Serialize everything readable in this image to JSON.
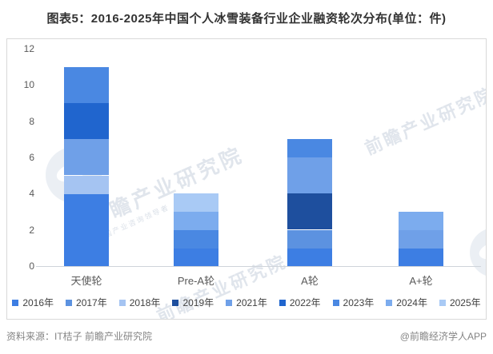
{
  "title": "图表5：2016-2025年中国个人冰雪装备行业企业融资轮次分布(单位：件)",
  "source": {
    "left": "资料来源：IT桔子 前瞻产业研究院",
    "right": "@前瞻经济学人APP"
  },
  "watermark": {
    "main_text": "前瞻产业研究院",
    "sub_text": "中国产业咨询领导者"
  },
  "chart_data": {
    "type": "bar",
    "stacked": true,
    "title": "图表5：2016-2025年中国个人冰雪装备行业企业融资轮次分布(单位：件)",
    "unit_label": "件",
    "categories": [
      "天使轮",
      "Pre-A轮",
      "A轮",
      "A+轮"
    ],
    "series": [
      {
        "name": "2016年",
        "color": "#3d7ee3",
        "values": [
          4,
          1,
          1,
          1
        ]
      },
      {
        "name": "2017年",
        "color": "#5c92e0",
        "values": [
          0,
          0,
          1,
          0
        ]
      },
      {
        "name": "2018年",
        "color": "#a5c4f2",
        "values": [
          1,
          0,
          0,
          0
        ]
      },
      {
        "name": "2019年",
        "color": "#1e4f9e",
        "values": [
          0,
          0,
          2,
          0
        ]
      },
      {
        "name": "2021年",
        "color": "#6fa0e8",
        "values": [
          2,
          0,
          2,
          1
        ]
      },
      {
        "name": "2022年",
        "color": "#2065ce",
        "values": [
          2,
          0,
          0,
          0
        ]
      },
      {
        "name": "2023年",
        "color": "#4a88e2",
        "values": [
          2,
          1,
          1,
          0
        ]
      },
      {
        "name": "2024年",
        "color": "#7cacee",
        "values": [
          0,
          1,
          0,
          1
        ]
      },
      {
        "name": "2025年",
        "color": "#a9caf5",
        "values": [
          0,
          1,
          0,
          0
        ]
      }
    ],
    "totals": {
      "天使轮": 11,
      "Pre-A轮": 4,
      "A轮": 7,
      "A+轮": 3
    },
    "ylim": [
      0,
      12
    ],
    "yticks": [
      0,
      2,
      4,
      6,
      8,
      10,
      12
    ],
    "grid": false,
    "legend_position": "bottom"
  }
}
